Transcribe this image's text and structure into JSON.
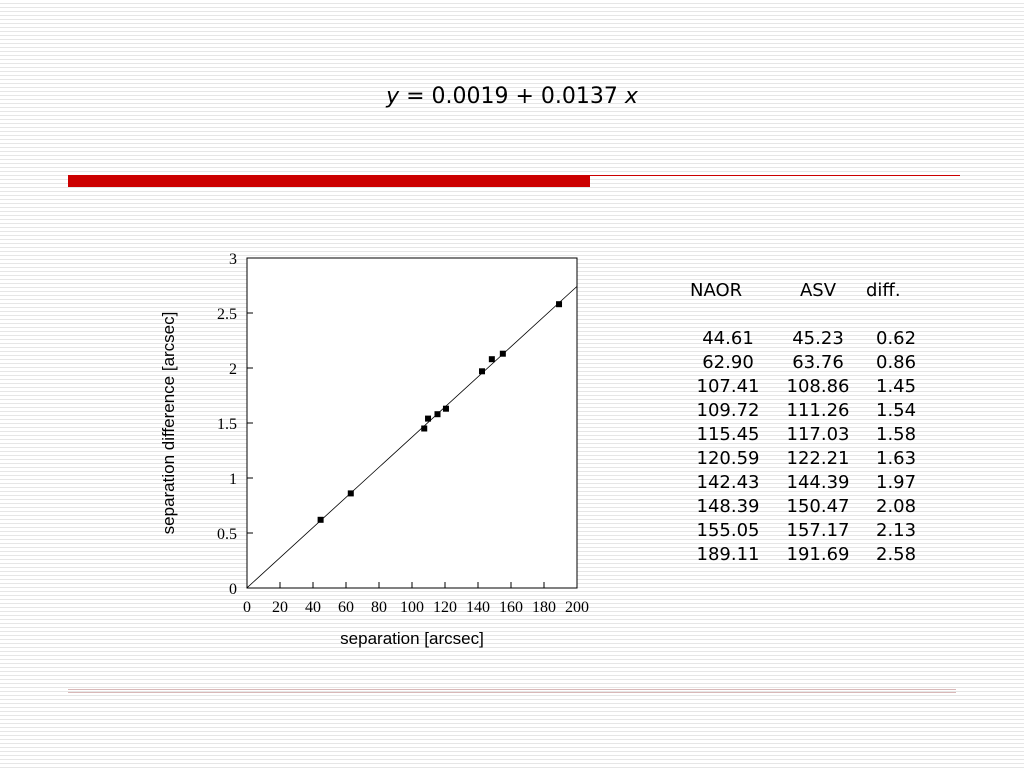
{
  "equation": {
    "y_var": "y",
    "middle": " = 0.0019 + 0.0137 ",
    "x_var": "x"
  },
  "table": {
    "headers": [
      "NAOR",
      "ASV",
      "diff."
    ],
    "rows": [
      [
        "44.61",
        "45.23",
        "0.62"
      ],
      [
        "62.90",
        "63.76",
        "0.86"
      ],
      [
        "107.41",
        "108.86",
        "1.45"
      ],
      [
        "109.72",
        "111.26",
        "1.54"
      ],
      [
        "115.45",
        "117.03",
        "1.58"
      ],
      [
        "120.59",
        "122.21",
        "1.63"
      ],
      [
        "142.43",
        "144.39",
        "1.97"
      ],
      [
        "148.39",
        "150.47",
        "2.08"
      ],
      [
        "155.05",
        "157.17",
        "2.13"
      ],
      [
        "189.11",
        "191.69",
        "2.58"
      ]
    ]
  },
  "chart_data": {
    "type": "scatter",
    "xlabel": "separation [arcsec]",
    "ylabel": "separation difference [arcsec]",
    "xlim": [
      0,
      200
    ],
    "ylim": [
      0,
      3
    ],
    "xticks": [
      "0",
      "20",
      "40",
      "60",
      "80",
      "100",
      "120",
      "140",
      "160",
      "180",
      "200"
    ],
    "yticks": [
      "0",
      "0.5",
      "1",
      "1.5",
      "2",
      "2.5",
      "3"
    ],
    "points": [
      {
        "x": 44.61,
        "y": 0.62
      },
      {
        "x": 62.9,
        "y": 0.86
      },
      {
        "x": 107.41,
        "y": 1.45
      },
      {
        "x": 109.72,
        "y": 1.54
      },
      {
        "x": 115.45,
        "y": 1.58
      },
      {
        "x": 120.59,
        "y": 1.63
      },
      {
        "x": 142.43,
        "y": 1.97
      },
      {
        "x": 148.39,
        "y": 2.08
      },
      {
        "x": 155.05,
        "y": 2.13
      },
      {
        "x": 189.11,
        "y": 2.58
      }
    ],
    "fit": {
      "intercept": 0.0019,
      "slope": 0.0137
    },
    "grid": false,
    "legend": "none",
    "colors": {
      "markers": "#000000",
      "fit_line": "#000000"
    }
  },
  "decor": {
    "accent": "#cc0000"
  }
}
